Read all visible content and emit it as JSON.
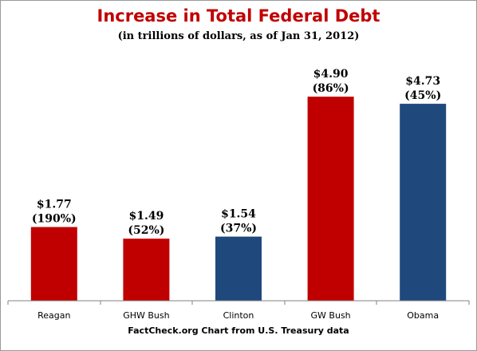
{
  "chart_data": {
    "type": "bar",
    "title": "Increase in Total Federal Debt",
    "subtitle": "(in trillions of dollars, as of Jan 31, 2012)",
    "source": "FactCheck.org  Chart from U.S. Treasury data",
    "categories": [
      "Reagan",
      "GHW Bush",
      "Clinton",
      "GW Bush",
      "Obama"
    ],
    "values": [
      1.77,
      1.49,
      1.54,
      4.9,
      4.73
    ],
    "value_labels": [
      "$1.77",
      "$1.49",
      "$1.54",
      "$4.90",
      "$4.73"
    ],
    "percent_labels": [
      "(190%)",
      "(52%)",
      "(37%)",
      "(86%)",
      "(45%)"
    ],
    "bar_colors": [
      "#c00000",
      "#c00000",
      "#1f497d",
      "#c00000",
      "#1f497d"
    ],
    "xlabel": "",
    "ylabel": "",
    "ylim": [
      0,
      6.0
    ],
    "grid": false,
    "legend": false
  }
}
